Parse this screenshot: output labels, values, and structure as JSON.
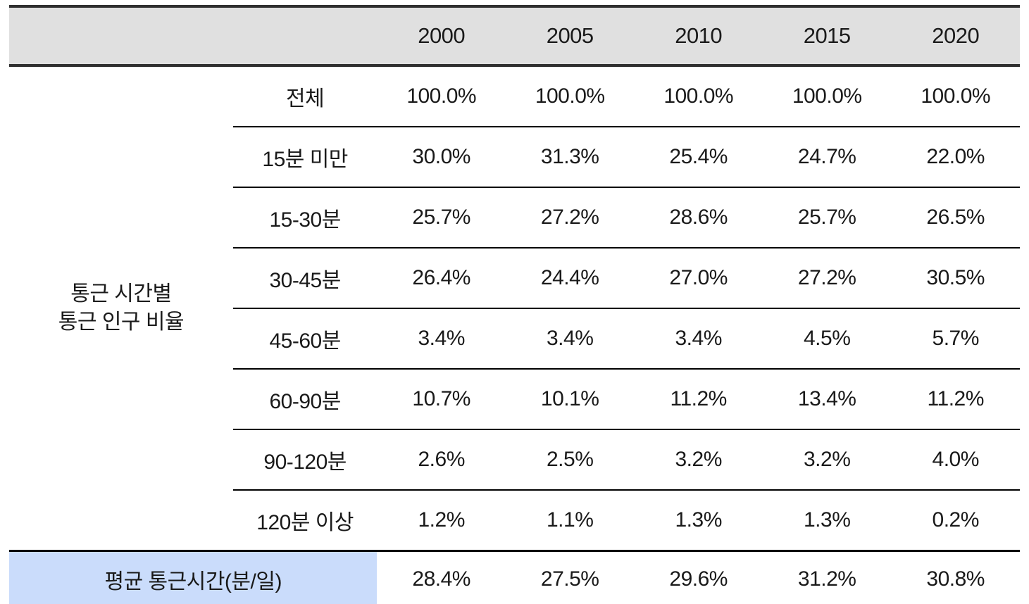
{
  "table": {
    "years": [
      "2000",
      "2005",
      "2010",
      "2015",
      "2020"
    ],
    "category_group": {
      "label_line1": "통근 시간별",
      "label_line2": "통근 인구 비율"
    },
    "rows": [
      {
        "label": "전체",
        "values": [
          "100.0%",
          "100.0%",
          "100.0%",
          "100.0%",
          "100.0%"
        ]
      },
      {
        "label": "15분 미만",
        "values": [
          "30.0%",
          "31.3%",
          "25.4%",
          "24.7%",
          "22.0%"
        ]
      },
      {
        "label": "15-30분",
        "values": [
          "25.7%",
          "27.2%",
          "28.6%",
          "25.7%",
          "26.5%"
        ]
      },
      {
        "label": "30-45분",
        "values": [
          "26.4%",
          "24.4%",
          "27.0%",
          "27.2%",
          "30.5%"
        ]
      },
      {
        "label": "45-60분",
        "values": [
          "3.4%",
          "3.4%",
          "3.4%",
          "4.5%",
          "5.7%"
        ]
      },
      {
        "label": "60-90분",
        "values": [
          "10.7%",
          "10.1%",
          "11.2%",
          "13.4%",
          "11.2%"
        ]
      },
      {
        "label": "90-120분",
        "values": [
          "2.6%",
          "2.5%",
          "3.2%",
          "3.2%",
          "4.0%"
        ]
      },
      {
        "label": "120분 이상",
        "values": [
          "1.2%",
          "1.1%",
          "1.3%",
          "1.3%",
          "0.2%"
        ]
      }
    ],
    "footer_row": {
      "label": "평균 통근시간(분/일)",
      "values": [
        "28.4%",
        "27.5%",
        "29.6%",
        "31.2%",
        "30.8%"
      ]
    },
    "colors": {
      "header_bg": "#e0e0e0",
      "category_bg": "#cadcfb",
      "outer_border": "#2f2f2f",
      "row_divider": "#000000"
    }
  },
  "chart_data": {
    "type": "table",
    "title": "통근 시간별 통근 인구 비율",
    "columns": [
      "2000",
      "2005",
      "2010",
      "2015",
      "2020"
    ],
    "unit": "%",
    "rows": [
      {
        "label": "전체",
        "values": [
          100.0,
          100.0,
          100.0,
          100.0,
          100.0
        ]
      },
      {
        "label": "15분 미만",
        "values": [
          30.0,
          31.3,
          25.4,
          24.7,
          22.0
        ]
      },
      {
        "label": "15-30분",
        "values": [
          25.7,
          27.2,
          28.6,
          25.7,
          26.5
        ]
      },
      {
        "label": "30-45분",
        "values": [
          26.4,
          24.4,
          27.0,
          27.2,
          30.5
        ]
      },
      {
        "label": "45-60분",
        "values": [
          3.4,
          3.4,
          3.4,
          4.5,
          5.7
        ]
      },
      {
        "label": "60-90분",
        "values": [
          10.7,
          10.1,
          11.2,
          13.4,
          11.2
        ]
      },
      {
        "label": "90-120분",
        "values": [
          2.6,
          2.5,
          3.2,
          3.2,
          4.0
        ]
      },
      {
        "label": "120분 이상",
        "values": [
          1.2,
          1.1,
          1.3,
          1.3,
          0.2
        ]
      },
      {
        "label": "평균 통근시간(분/일)",
        "values": [
          28.4,
          27.5,
          29.6,
          31.2,
          30.8
        ]
      }
    ]
  }
}
